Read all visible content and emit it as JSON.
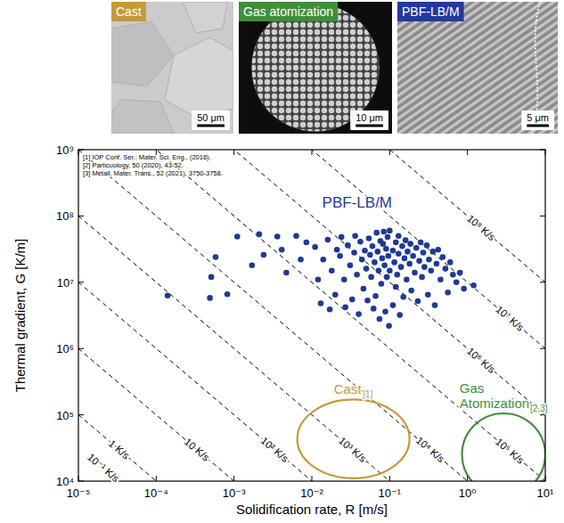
{
  "images": [
    {
      "label": "Cast",
      "color": "#c49a3a",
      "scale_bar": "50 μm"
    },
    {
      "label": "Gas atomization",
      "color": "#3f8f3a",
      "scale_bar": "10 μm"
    },
    {
      "label": "PBF-LB/M",
      "color": "#24399a",
      "scale_bar": "5 μm"
    }
  ],
  "chart_data": {
    "type": "scatter",
    "log": true,
    "grid": false,
    "xlabel": "Solidification rate, R [m/s]",
    "ylabel": "Thermal gradient, G [K/m]",
    "xlim": [
      1e-05,
      10
    ],
    "ylim": [
      10000.0,
      1000000000.0
    ],
    "xticks": [
      {
        "value": 1e-05,
        "label": "10⁻⁵"
      },
      {
        "value": 0.0001,
        "label": "10⁻⁴"
      },
      {
        "value": 0.001,
        "label": "10⁻³"
      },
      {
        "value": 0.01,
        "label": "10⁻²"
      },
      {
        "value": 0.1,
        "label": "10⁻¹"
      },
      {
        "value": 1,
        "label": "10⁰"
      },
      {
        "value": 10,
        "label": "10¹"
      }
    ],
    "yticks": [
      {
        "value": 10000.0,
        "label": "10⁴"
      },
      {
        "value": 100000.0,
        "label": "10⁵"
      },
      {
        "value": 1000000.0,
        "label": "10⁶"
      },
      {
        "value": 10000000.0,
        "label": "10⁷"
      },
      {
        "value": 100000000.0,
        "label": "10⁸"
      },
      {
        "value": 1000000000.0,
        "label": "10⁹"
      }
    ],
    "references": [
      "[1] IOP Conf. Ser.: Mater. Sci. Eng., (2016).",
      "[2] Particuology, 50 (2020), 43-52.",
      "[3] Metall. Mater. Trans., 52 (2021), 3750-3758."
    ],
    "cooling_rates": [
      0.1,
      1,
      10,
      100,
      1000,
      10000,
      100000,
      1000000,
      10000000,
      100000000
    ],
    "cooling_rate_labels": [
      "10⁻¹ K/s",
      "1 K/s",
      "10 K/s",
      "10² K/s",
      "10³ K/s",
      "10⁴ K/s",
      "10⁵ K/s",
      "10⁶ K/s",
      "10⁷ K/s",
      "10⁸ K/s"
    ],
    "regions": [
      {
        "name": "Cast",
        "reference": "[1]",
        "color": "#c49a3a",
        "x_range": [
          0.0065,
          0.18
        ],
        "y_range": [
          11000,
          170000
        ]
      },
      {
        "name": "Gas Atomization",
        "reference": "[2,3]",
        "color": "#3f8f3a",
        "x_range": [
          0.85,
          10
        ],
        "y_range": [
          6000,
          105000
        ]
      }
    ],
    "series": [
      {
        "name": "PBF-LB/M",
        "color": "#1f3a93",
        "marker": "circle",
        "x": [
          0.00014,
          0.00058,
          0.00051,
          0.00049,
          0.00082,
          0.0011,
          0.0017,
          0.0021,
          0.0024,
          0.0036,
          0.0041,
          0.0047,
          0.0063,
          0.0072,
          0.0085,
          0.011,
          0.012,
          0.013,
          0.014,
          0.016,
          0.017,
          0.018,
          0.02,
          0.021,
          0.023,
          0.024,
          0.026,
          0.027,
          0.029,
          0.031,
          0.033,
          0.035,
          0.036,
          0.038,
          0.04,
          0.042,
          0.044,
          0.046,
          0.048,
          0.05,
          0.052,
          0.054,
          0.056,
          0.058,
          0.06,
          0.062,
          0.064,
          0.066,
          0.068,
          0.07,
          0.072,
          0.074,
          0.076,
          0.078,
          0.08,
          0.082,
          0.084,
          0.086,
          0.088,
          0.09,
          0.092,
          0.094,
          0.096,
          0.098,
          0.1,
          0.1,
          0.11,
          0.11,
          0.115,
          0.12,
          0.12,
          0.125,
          0.13,
          0.13,
          0.135,
          0.14,
          0.145,
          0.15,
          0.155,
          0.16,
          0.165,
          0.17,
          0.18,
          0.185,
          0.19,
          0.2,
          0.21,
          0.22,
          0.23,
          0.24,
          0.25,
          0.26,
          0.27,
          0.28,
          0.3,
          0.31,
          0.32,
          0.34,
          0.36,
          0.38,
          0.4,
          0.42,
          0.45,
          0.48,
          0.52,
          0.56,
          0.6,
          0.65,
          0.72,
          0.8,
          0.9,
          1.2
        ],
        "values": [
          6300000.0,
          24000000.0,
          12000000.0,
          5800000.0,
          6600000.0,
          49000000.0,
          18000000.0,
          53000000.0,
          26000000.0,
          49000000.0,
          31000000.0,
          14000000.0,
          50000000.0,
          22000000.0,
          40000000.0,
          34000000.0,
          11000000.0,
          4800000.0,
          22000000.0,
          44000000.0,
          3900000.0,
          15000000.0,
          6500000.0,
          31000000.0,
          25000000.0,
          48000000.0,
          11000000.0,
          4200000.0,
          36000000.0,
          18000000.0,
          5500000.0,
          28000000.0,
          50000000.0,
          13000000.0,
          3300000.0,
          41000000.0,
          22000000.0,
          8000000.0,
          30000000.0,
          16000000.0,
          5300000.0,
          46000000.0,
          26000000.0,
          12000000.0,
          35000000.0,
          4000000.0,
          20000000.0,
          6200000.0,
          56000000.0,
          29000000.0,
          15000000.0,
          2800000.0,
          42000000.0,
          9500000.0,
          23000000.0,
          38000000.0,
          58000000.0,
          18000000.0,
          3600000.0,
          32000000.0,
          12000000.0,
          48000000.0,
          25000000.0,
          2200000.0,
          60000000.0,
          15000000.0,
          30000000.0,
          4500000.0,
          20000000.0,
          40000000.0,
          8500000.0,
          13000000.0,
          27000000.0,
          50000000.0,
          3200000.0,
          17000000.0,
          35000000.0,
          6000000.0,
          23000000.0,
          43000000.0,
          11000000.0,
          29000000.0,
          19000000.0,
          38000000.0,
          7500000.0,
          25000000.0,
          14000000.0,
          33000000.0,
          5200000.0,
          21000000.0,
          40000000.0,
          12000000.0,
          28000000.0,
          17000000.0,
          36000000.0,
          6500000.0,
          22000000.0,
          15000000.0,
          29000000.0,
          4500000.0,
          19000000.0,
          31000000.0,
          11000000.0,
          24000000.0,
          16000000.0,
          7000000.0,
          20000000.0,
          13000000.0,
          10000000.0,
          14000000.0,
          8000000.0,
          9000000.0
        ]
      }
    ]
  }
}
